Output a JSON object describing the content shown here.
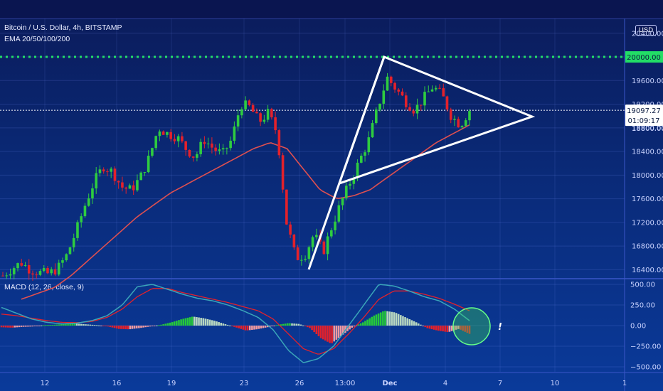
{
  "header": {
    "symbol": "Bitcoin / U.S. Dollar, 4h, BITSTAMP",
    "indicator": "EMA 20/50/100/200",
    "currency": "USD"
  },
  "macd": {
    "label": "MACD (12, 26, close, 9)",
    "annotation": "!"
  },
  "badges": {
    "resistance": "20000.00",
    "last_price": "19097.27",
    "countdown": "01:09:17",
    "hidden_price": "18800.00"
  },
  "colors": {
    "up": "#2ecc40",
    "down": "#e3212b",
    "ema": "#e05050",
    "macd_line": "#3aa6b9",
    "signal_line": "#e3212b",
    "resistance": "#22dd66",
    "drawing": "#ffffff"
  },
  "chart_data": [
    {
      "type": "candlestick",
      "title": "Bitcoin / U.S. Dollar, 4h, BITSTAMP",
      "y_ticks": [
        16400,
        16800,
        17200,
        17600,
        18000,
        18400,
        18800,
        19200,
        19600,
        20000,
        20400
      ],
      "y_tick_labels": [
        "16400.00",
        "16800.00",
        "17200.00",
        "17600.00",
        "18000.00",
        "18400.00",
        "18800.00",
        "19200.00",
        "19600.00",
        "20000.00",
        "20400.00"
      ],
      "ylim": [
        16260,
        20650
      ],
      "x_tick_labels": [
        "12",
        "16",
        "19",
        "23",
        "26",
        "13:00",
        "Dec",
        "4",
        "7",
        "10",
        "1"
      ],
      "resistance_level": 20000,
      "last_price": 19097.27,
      "close_path": [
        16300,
        16420,
        16520,
        16400,
        16350,
        16330,
        16420,
        16650,
        17050,
        17500,
        17900,
        18150,
        18050,
        17800,
        17750,
        17950,
        18300,
        18800,
        18700,
        18650,
        18450,
        18300,
        18600,
        18450,
        18350,
        18600,
        19200,
        19150,
        18900,
        19050,
        18700,
        17200,
        16600,
        16650,
        17000,
        16700,
        17150,
        17550,
        17900,
        18250,
        18600,
        19150,
        19650,
        19450,
        19250,
        19100,
        19300,
        19500,
        19350,
        19000,
        18850,
        19100
      ],
      "ema_path": [
        15900,
        16000,
        16100,
        16300,
        16550,
        16800,
        17050,
        17300,
        17500,
        17700,
        17850,
        18000,
        18150,
        18300,
        18450,
        18550,
        18450,
        18100,
        17750,
        17600,
        17650,
        17750,
        17950,
        18150,
        18350,
        18550,
        18700,
        18850
      ]
    },
    {
      "type": "bar",
      "title": "MACD (12, 26, close, 9)",
      "y_ticks": [
        -500,
        -250,
        0,
        250,
        500
      ],
      "y_tick_labels": [
        "−500.00",
        "−250.00",
        "0.00",
        "250.00",
        "500.00"
      ],
      "ylim": [
        -560,
        560
      ],
      "histogram_path": [
        -20,
        -25,
        -15,
        -10,
        5,
        10,
        20,
        25,
        15,
        5,
        -10,
        -40,
        -45,
        -30,
        -10,
        10,
        40,
        80,
        110,
        90,
        60,
        20,
        -20,
        -60,
        -45,
        -20,
        10,
        30,
        20,
        -30,
        -150,
        -220,
        -120,
        -20,
        40,
        120,
        180,
        160,
        100,
        40,
        -30,
        -60,
        -80,
        -40,
        -100
      ],
      "macd_path": [
        220,
        150,
        80,
        40,
        20,
        30,
        60,
        120,
        250,
        470,
        500,
        440,
        380,
        330,
        300,
        250,
        180,
        100,
        -50,
        -300,
        -450,
        -400,
        -250,
        0,
        250,
        500,
        480,
        420,
        350,
        300,
        200,
        60
      ],
      "signal_path": [
        140,
        120,
        90,
        60,
        40,
        35,
        50,
        100,
        200,
        350,
        450,
        450,
        400,
        360,
        320,
        280,
        230,
        180,
        80,
        -100,
        -280,
        -350,
        -280,
        -100,
        100,
        320,
        420,
        420,
        380,
        330,
        260,
        180
      ]
    }
  ]
}
